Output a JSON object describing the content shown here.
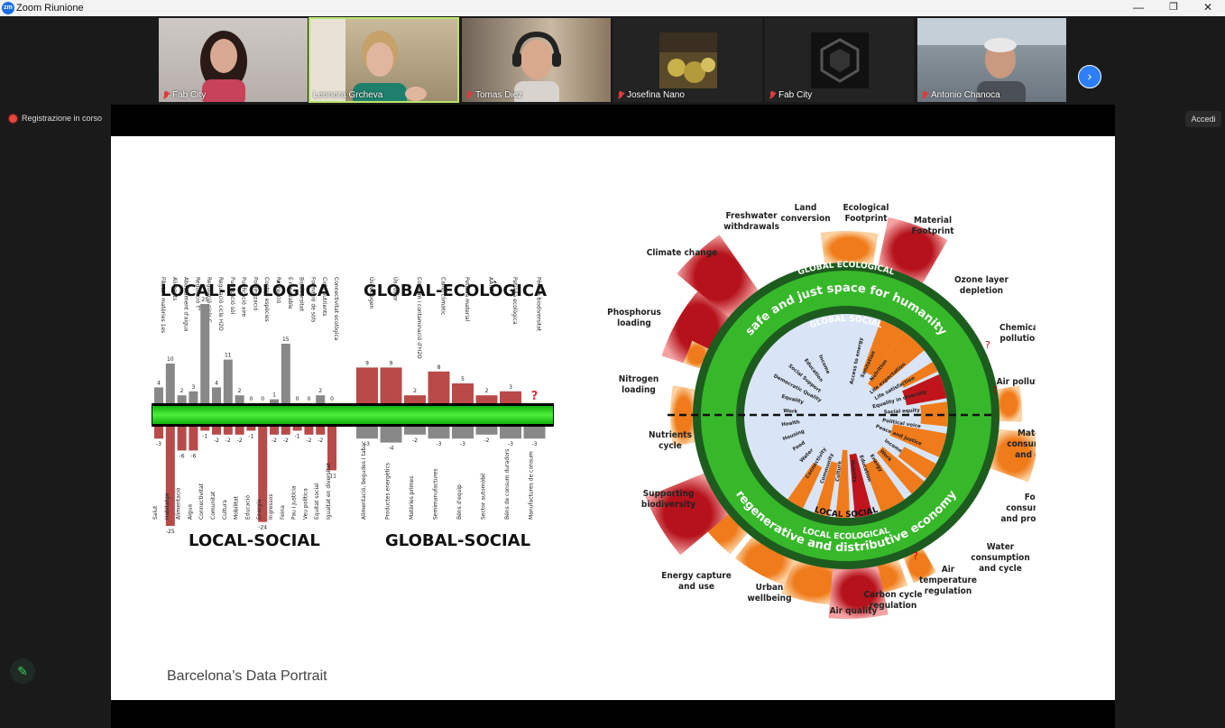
{
  "window": {
    "title": "Zoom Riunione",
    "logo": "zm"
  },
  "participants": [
    {
      "name": "Fab City",
      "muted": true,
      "active": false
    },
    {
      "name": "Leonora Grcheva",
      "muted": false,
      "active": true
    },
    {
      "name": "Tomas Diez",
      "muted": true,
      "active": false
    },
    {
      "name": "Josefina Nano",
      "muted": true,
      "active": false
    },
    {
      "name": "Fab City",
      "muted": true,
      "active": false
    },
    {
      "name": "Antonio Chanoca",
      "muted": true,
      "active": false
    }
  ],
  "recording_label": "Registrazione in corso",
  "signin_label": "Accedi",
  "slide": {
    "caption": "Barcelona’s Data Portrait",
    "bar_chart": {
      "titles": {
        "local_eco": "LOCAL-ECOLÒGICA",
        "global_eco": "GLOBAL-ECOLÒGICA",
        "local_soc": "LOCAL-SOCIAL",
        "global_soc": "GLOBAL-SOCIAL"
      },
      "top_local": [
        {
          "label": "Fibres i matèries 1es",
          "value": 4
        },
        {
          "label": "Aliments",
          "value": 10
        },
        {
          "label": "Abastament d'aigua",
          "value": 2
        },
        {
          "label": "Regulació T°",
          "value": 3
        },
        {
          "label": "Regulació cicle C",
          "value": 25
        },
        {
          "label": "Regulació cicle H2O",
          "value": 4
        },
        {
          "label": "Purificació sòl",
          "value": 11
        },
        {
          "label": "Purificació aire",
          "value": 2
        },
        {
          "label": "Pol·linització",
          "value": 0
        },
        {
          "label": "Control espècies",
          "value": 0
        },
        {
          "label": "Recreació",
          "value": 1
        },
        {
          "label": "E renovable",
          "value": 15
        },
        {
          "label": "Biodiversitat",
          "value": 0
        },
        {
          "label": "Formació de sòls",
          "value": 0
        },
        {
          "label": "Cicle nutrients",
          "value": 2
        },
        {
          "label": "Connectivitat ecològica",
          "value": 0
        }
      ],
      "top_global": [
        {
          "label": "Ús Nitrogen",
          "value": 9
        },
        {
          "label": "Ús fòsfor",
          "value": 9
        },
        {
          "label": "Consum i contaminació d'H2O",
          "value": 2
        },
        {
          "label": "Canvi climàtic",
          "value": 8
        },
        {
          "label": "Petjada material",
          "value": 5
        },
        {
          "label": "AANPP",
          "value": 2
        },
        {
          "label": "Petjada ecològica",
          "value": 3
        },
        {
          "label": "Pèrdua biodiversitat",
          "value": null,
          "mark": "?"
        }
      ],
      "bottom_local": [
        {
          "label": "Salut",
          "value": -3
        },
        {
          "label": "Habitatge",
          "value": -25
        },
        {
          "label": "Alimentació",
          "value": -6
        },
        {
          "label": "Aigua",
          "value": -6
        },
        {
          "label": "Connectivitat",
          "value": -1
        },
        {
          "label": "Comunitat",
          "value": -2
        },
        {
          "label": "Cultura",
          "value": -2
        },
        {
          "label": "Mobilitat",
          "value": -2
        },
        {
          "label": "Educació",
          "value": -1
        },
        {
          "label": "Energia",
          "value": -24
        },
        {
          "label": "Ingressos",
          "value": -2
        },
        {
          "label": "Feina",
          "value": -2
        },
        {
          "label": "Pau i justícia",
          "value": -1
        },
        {
          "label": "Veu política",
          "value": -2
        },
        {
          "label": "Equitat social",
          "value": -2
        },
        {
          "label": "Igualtat en diversitat",
          "value": -11
        }
      ],
      "bottom_global": [
        {
          "label": "Alimentació, begudes i tabac",
          "value": -3
        },
        {
          "label": "Productes energètics",
          "value": -4
        },
        {
          "label": "Matèries primes",
          "value": -2
        },
        {
          "label": "Semimanufactures",
          "value": -3
        },
        {
          "label": "Béns d'equip",
          "value": -3
        },
        {
          "label": "Sector automòbil",
          "value": -2
        },
        {
          "label": "Béns de consum duradors",
          "value": -3
        },
        {
          "label": "Manufactures de consum",
          "value": -3
        }
      ]
    },
    "donut": {
      "outer_labels": [
        "Land conversion",
        "Ecological Footprint",
        "Material Footprint",
        "Ozone layer depletion",
        "Chemical pollution",
        "Air pollution",
        "Material consumption and cycle",
        "Food consumption and production",
        "Water consumption and cycle",
        "Air temperature regulation",
        "Carbon cycle regulation",
        "Air quality",
        "Urban wellbeing",
        "Energy capture and use",
        "Supporting biodiversity",
        "Nutrients cycle",
        "Nitrogen loading",
        "Phosphorus loading",
        "Climate change",
        "Freshwater withdrawals"
      ],
      "ring_labels": {
        "global_ecological": "GLOBAL ECOLOGICAL",
        "safe": "safe and just space for humanity",
        "global_social": "GLOBAL SOCIAL",
        "local_social": "LOCAL SOCIAL",
        "regen": "regenerative and distributive economy",
        "local_ecological": "LOCAL ECOLOGICAL"
      },
      "inner_labels": [
        "Access to energy",
        "Sanitation",
        "Nutrition",
        "Life expectation",
        "Life satisfaction",
        "Equality in diversity",
        "Social equity",
        "Political voice",
        "Peace and justice",
        "Income",
        "Work",
        "Energy",
        "Education",
        "Mobility",
        "Culture",
        "Community",
        "Connectivity",
        "Water",
        "Food",
        "Housing",
        "Health",
        "Work",
        "Equality",
        "Democratic Quality",
        "Social Support",
        "Education",
        "Income"
      ],
      "question_mark": "?"
    }
  },
  "icons": {
    "mic_muted": "mic-muted-icon",
    "next": "chevron-right-icon",
    "record": "record-dot-icon",
    "pencil": "pencil-icon"
  }
}
